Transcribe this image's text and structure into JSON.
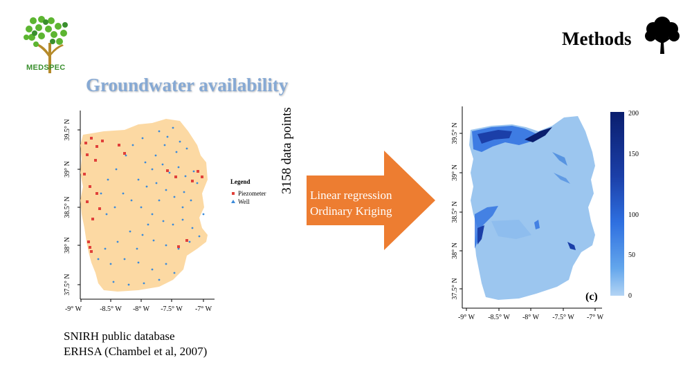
{
  "logo": {
    "text": "MEDSPEC"
  },
  "header": {
    "title": "Groundwater availability",
    "section": "Methods"
  },
  "icons": {
    "logo": "tree-logo-icon",
    "section": "tree-icon",
    "arrow": "arrow-right-icon"
  },
  "left_map": {
    "y_ticks": [
      "39.5° N",
      "39° N",
      "38.5° N",
      "38° N",
      "37.5° N"
    ],
    "x_ticks": [
      "-9° W",
      "-8.5° W",
      "-8° W",
      "-7.5° W",
      "-7° W"
    ],
    "legend": {
      "title": "Legend",
      "items": [
        "Piezometer",
        "Well"
      ]
    },
    "colors": {
      "land": "#fcd9a3",
      "piezometer": "#e0403a",
      "well": "#3b8ad9"
    }
  },
  "data_points": "3158 data points",
  "arrow": {
    "lines": [
      "Linear regression",
      "Ordinary Kriging"
    ],
    "color": "#ed7d31"
  },
  "right_map": {
    "y_ticks": [
      "39.5° N",
      "39° N",
      "38.5° N",
      "38° N",
      "37.5° N"
    ],
    "x_ticks": [
      "-9° W",
      "-8.5° W",
      "-8° W",
      "-7.5° W",
      "-7° W"
    ],
    "panel_label": "(c)",
    "colorbar_labels": [
      "200",
      "150",
      "100",
      "50",
      "0"
    ],
    "colors": {
      "base": "#9cc6ef",
      "high": "#0a1e6e"
    }
  },
  "sources": [
    "SNIRH public database",
    "ERHSA (Chambel et al, 2007)"
  ]
}
